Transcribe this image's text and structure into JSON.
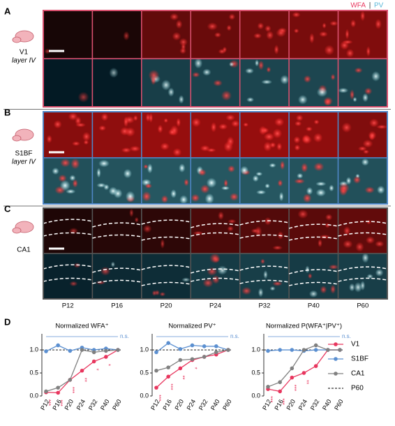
{
  "figure": {
    "channel_labels": [
      "WFA",
      "PV"
    ],
    "separator": "|",
    "panels": [
      {
        "letter": "A",
        "region": "V1",
        "layer": "layer IV"
      },
      {
        "letter": "B",
        "region": "S1BF",
        "layer": "layer IV"
      },
      {
        "letter": "C",
        "region": "CA1"
      }
    ],
    "ages": [
      "P12",
      "P16",
      "P20",
      "P24",
      "P32",
      "P40",
      "P60"
    ],
    "panel_d_letter": "D",
    "legend_reference": "P60"
  },
  "chart_data": [
    {
      "type": "line",
      "title": "Normalized WFA⁺",
      "categories": [
        "P12",
        "P16",
        "P20",
        "P24",
        "P32",
        "P40",
        "P60"
      ],
      "ylim": [
        0,
        1.35
      ],
      "yticks": [
        {
          "value": 0,
          "label": "0.0"
        },
        {
          "value": 0.5,
          "label": "0.5"
        },
        {
          "value": 1,
          "label": "1.0"
        }
      ],
      "annotation": "n.s.",
      "v1_stars": [
        "***",
        "***",
        "***",
        "**",
        "*",
        "*",
        null
      ],
      "series": [
        {
          "name": "V1",
          "color": "#e8365e",
          "values": [
            0.08,
            0.07,
            0.35,
            0.55,
            0.75,
            0.85,
            1.0
          ]
        },
        {
          "name": "S1BF",
          "color": "#5b8fd0",
          "values": [
            0.97,
            1.1,
            0.98,
            1.05,
            1.0,
            1.03,
            1.0
          ]
        },
        {
          "name": "CA1",
          "color": "#808080",
          "values": [
            0.1,
            0.18,
            0.35,
            1.0,
            0.95,
            0.98,
            1.0
          ]
        }
      ]
    },
    {
      "type": "line",
      "title": "Normalized PV⁺",
      "categories": [
        "P12",
        "P16",
        "P20",
        "P24",
        "P32",
        "P40",
        "P60"
      ],
      "ylim": [
        0,
        1.35
      ],
      "yticks": [
        {
          "value": 0,
          "label": "0.0"
        },
        {
          "value": 0.5,
          "label": "0.5"
        },
        {
          "value": 1,
          "label": "1.0"
        }
      ],
      "annotation": "n.s.",
      "v1_stars": [
        "***",
        "***",
        "**",
        "*",
        null,
        null,
        null
      ],
      "series": [
        {
          "name": "V1",
          "color": "#e8365e",
          "values": [
            0.18,
            0.42,
            0.6,
            0.78,
            0.85,
            0.9,
            1.0
          ]
        },
        {
          "name": "S1BF",
          "color": "#5b8fd0",
          "values": [
            0.95,
            1.15,
            1.02,
            1.1,
            1.08,
            1.08,
            1.0
          ]
        },
        {
          "name": "CA1",
          "color": "#808080",
          "values": [
            0.55,
            0.62,
            0.78,
            0.8,
            0.85,
            0.95,
            1.0
          ]
        }
      ]
    },
    {
      "type": "line",
      "title": "Normalized P(WFA⁺|PV⁺)",
      "categories": [
        "P12",
        "P16",
        "P20",
        "P24",
        "P32",
        "P40",
        "P60"
      ],
      "ylim": [
        0,
        1.35
      ],
      "yticks": [
        {
          "value": 0,
          "label": "0.0"
        },
        {
          "value": 0.5,
          "label": "0.5"
        },
        {
          "value": 1,
          "label": "1.0"
        }
      ],
      "annotation": "n.s.",
      "v1_stars": [
        "***",
        "***",
        "***",
        "**",
        null,
        null,
        null
      ],
      "series": [
        {
          "name": "V1",
          "color": "#e8365e",
          "values": [
            0.15,
            0.1,
            0.4,
            0.5,
            0.65,
            1.0,
            1.0
          ]
        },
        {
          "name": "S1BF",
          "color": "#5b8fd0",
          "values": [
            0.98,
            1.0,
            1.0,
            0.98,
            1.0,
            1.0,
            1.0
          ]
        },
        {
          "name": "CA1",
          "color": "#808080",
          "values": [
            0.2,
            0.3,
            0.6,
            1.0,
            1.1,
            1.0,
            1.0
          ]
        }
      ]
    }
  ]
}
